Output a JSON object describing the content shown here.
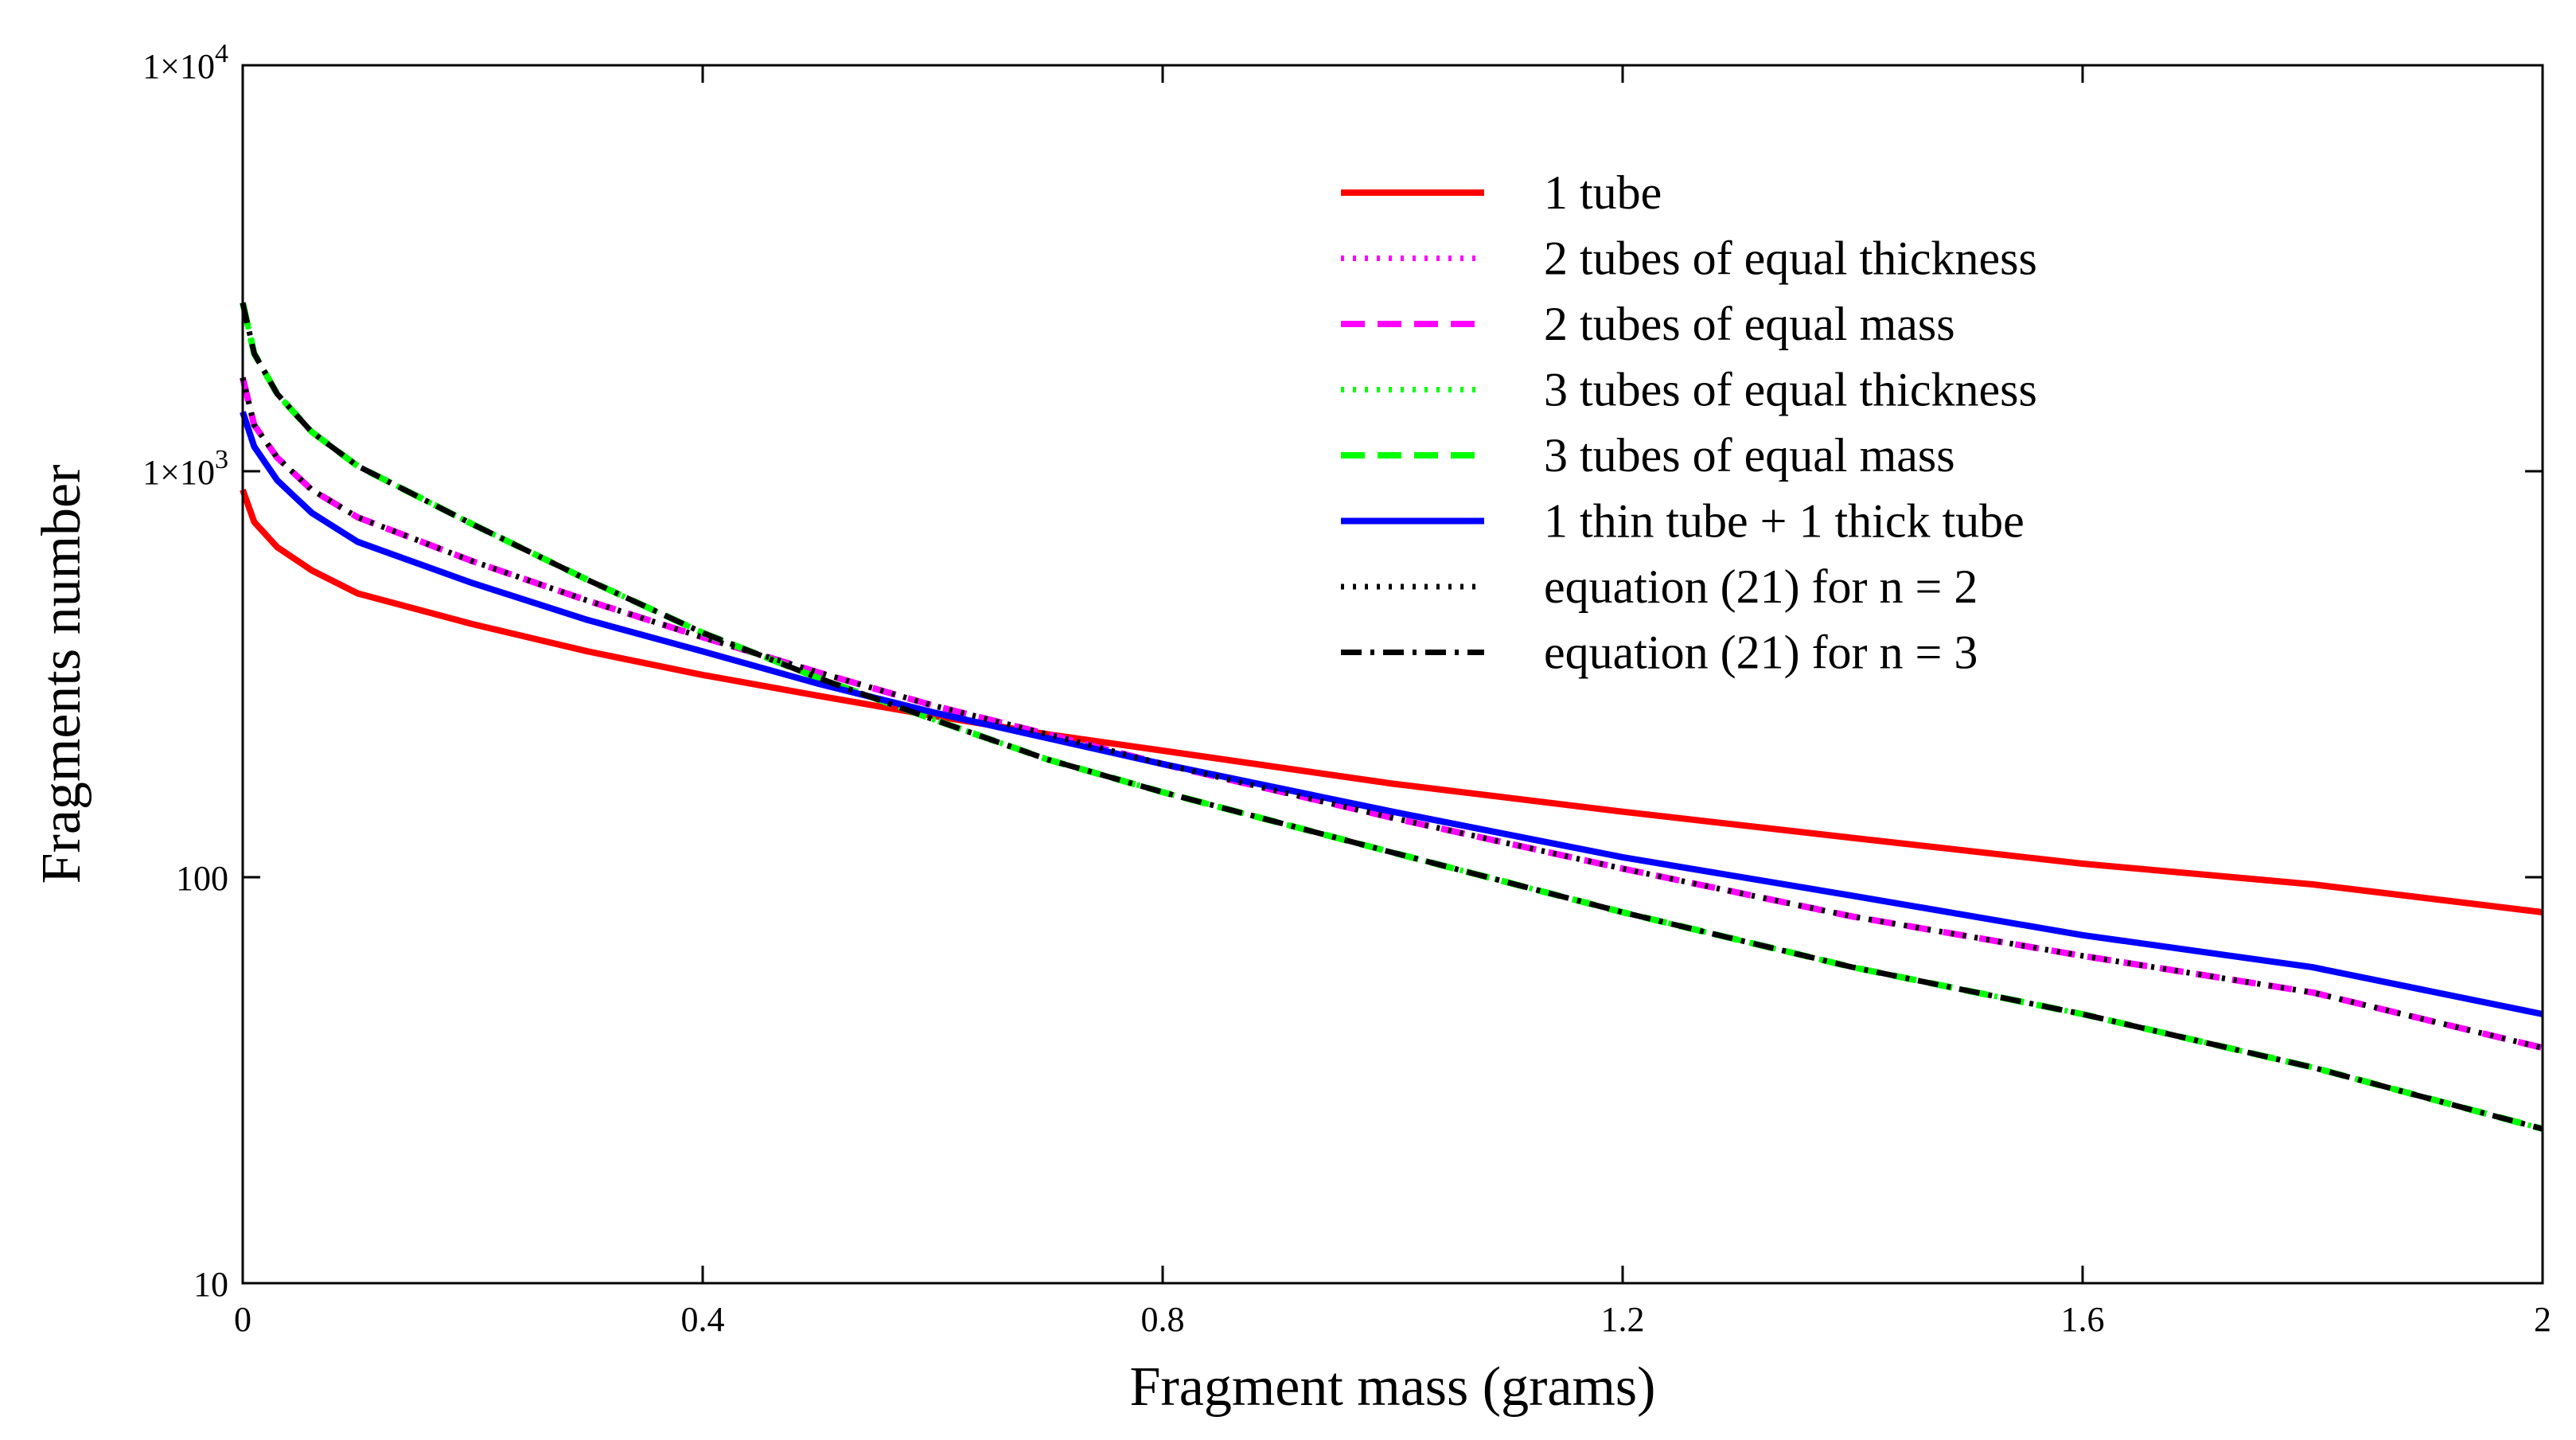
{
  "chart_data": {
    "type": "line",
    "xlabel": "Fragment mass (grams)",
    "ylabel": "Fragments number",
    "xlim": [
      0,
      2
    ],
    "ylim": [
      10,
      10000
    ],
    "yscale": "log",
    "grid": false,
    "legend_position": "top-right",
    "x_ticks": [
      {
        "value": 0,
        "label": "0"
      },
      {
        "value": 0.4,
        "label": "0.4"
      },
      {
        "value": 0.8,
        "label": "0.8"
      },
      {
        "value": 1.2,
        "label": "1.2"
      },
      {
        "value": 1.6,
        "label": "1.6"
      },
      {
        "value": 2,
        "label": "2"
      }
    ],
    "y_ticks": [
      {
        "value": 10,
        "label": "10",
        "mantissa": "",
        "exponent": ""
      },
      {
        "value": 100,
        "label": "100",
        "mantissa": "",
        "exponent": ""
      },
      {
        "value": 1000,
        "label": "",
        "mantissa": "1×10",
        "exponent": "3"
      },
      {
        "value": 10000,
        "label": "",
        "mantissa": "1×10",
        "exponent": "4"
      }
    ],
    "x": [
      0,
      0.01,
      0.03,
      0.06,
      0.1,
      0.2,
      0.3,
      0.4,
      0.5,
      0.6,
      0.7,
      0.8,
      1.0,
      1.2,
      1.4,
      1.6,
      1.8,
      2.0
    ],
    "series": [
      {
        "name": "1 tube",
        "color": "#ff0000",
        "dash": "solid",
        "values": [
          900,
          750,
          650,
          570,
          500,
          420,
          360,
          315,
          280,
          250,
          225,
          205,
          170,
          145,
          125,
          108,
          96,
          82
        ]
      },
      {
        "name": "2 tubes of equal thickness",
        "color": "#ff00ff",
        "dash": "dotted",
        "values": [
          1700,
          1300,
          1080,
          900,
          770,
          600,
          480,
          390,
          320,
          265,
          225,
          190,
          140,
          105,
          80,
          64,
          52,
          38
        ]
      },
      {
        "name": "2 tubes of equal mass",
        "color": "#ff00ff",
        "dash": "dashed",
        "values": [
          1700,
          1300,
          1080,
          900,
          770,
          600,
          480,
          390,
          320,
          265,
          225,
          190,
          140,
          105,
          80,
          64,
          52,
          38
        ]
      },
      {
        "name": "3 tubes of equal thickness",
        "color": "#00ff00",
        "dash": "dotted",
        "values": [
          2600,
          1950,
          1550,
          1250,
          1030,
          740,
          540,
          400,
          310,
          245,
          195,
          162,
          115,
          82,
          60,
          46,
          34,
          24
        ]
      },
      {
        "name": "3 tubes of equal mass",
        "color": "#00ff00",
        "dash": "dashed",
        "values": [
          2600,
          1950,
          1550,
          1250,
          1030,
          740,
          540,
          400,
          310,
          245,
          195,
          162,
          115,
          82,
          60,
          46,
          34,
          24
        ]
      },
      {
        "name": "1 thin tube + 1 thick tube",
        "color": "#0000ff",
        "dash": "solid",
        "values": [
          1400,
          1150,
          950,
          790,
          670,
          530,
          430,
          360,
          300,
          255,
          220,
          190,
          145,
          112,
          90,
          72,
          60,
          46
        ]
      },
      {
        "name": "equation (21) for n = 2",
        "color": "#000000",
        "dash": "dotted",
        "values": [
          1700,
          1300,
          1080,
          900,
          770,
          600,
          480,
          390,
          320,
          265,
          225,
          190,
          140,
          105,
          80,
          64,
          52,
          38
        ]
      },
      {
        "name": "equation (21) for n = 3",
        "color": "#000000",
        "dash": "dashdot",
        "values": [
          2600,
          1950,
          1550,
          1250,
          1030,
          740,
          540,
          400,
          310,
          245,
          195,
          162,
          115,
          82,
          60,
          46,
          34,
          24
        ]
      }
    ]
  }
}
